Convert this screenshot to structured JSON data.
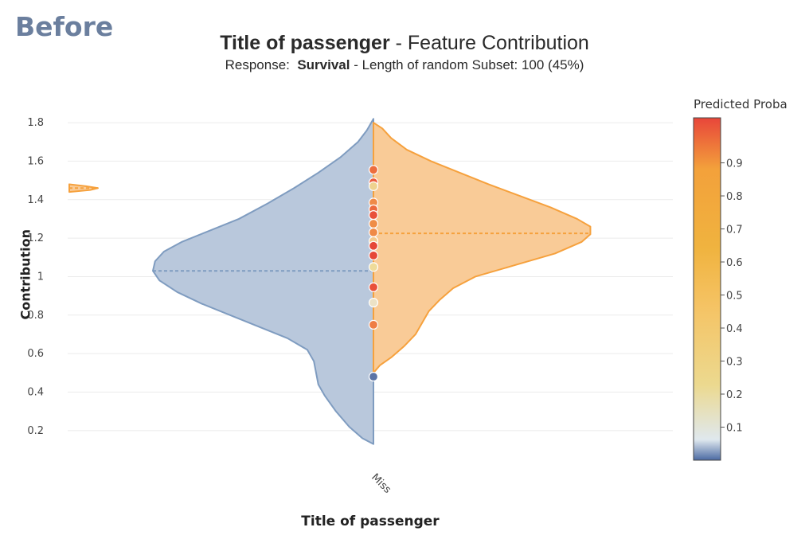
{
  "corner_label": "Before",
  "title": {
    "main": "Title of passenger",
    "rest": " - Feature Contribution"
  },
  "subtitle": {
    "pre": "Response:  ",
    "bold": "Survival",
    "post": " - Length of random Subset: 100 (45%)"
  },
  "colorbar": {
    "title": "Predicted Proba",
    "ticks": [
      "0.1",
      "0.2",
      "0.3",
      "0.4",
      "0.5",
      "0.6",
      "0.7",
      "0.8",
      "0.9"
    ],
    "colorscale": [
      "#4b6aa3",
      "#dfe8ee",
      "#ecd98f",
      "#f5c364",
      "#f0b33f",
      "#f3a13b",
      "#e8463a"
    ]
  },
  "chart_data": {
    "type": "violin",
    "xlabel": "Title of passenger",
    "ylabel": "Contribution",
    "ylim": [
      0.1,
      1.85
    ],
    "yticks": [
      0.2,
      0.4,
      0.6,
      0.8,
      1,
      1.2,
      1.4,
      1.6,
      1.8
    ],
    "ytick_labels": [
      "0.2",
      "0.4",
      "0.6",
      "0.8",
      "1",
      "1.2",
      "1.4",
      "1.6",
      "1.8"
    ],
    "categories": [
      "Miss"
    ],
    "grid": true,
    "series": [
      {
        "side": "negative",
        "color": "#7f9cc0",
        "fill": "#b9c8dc",
        "median": 1.03,
        "density": [
          [
            0.13,
            0.0
          ],
          [
            0.16,
            0.05
          ],
          [
            0.22,
            0.11
          ],
          [
            0.3,
            0.17
          ],
          [
            0.38,
            0.22
          ],
          [
            0.44,
            0.25
          ],
          [
            0.5,
            0.26
          ],
          [
            0.56,
            0.27
          ],
          [
            0.62,
            0.3
          ],
          [
            0.68,
            0.39
          ],
          [
            0.74,
            0.52
          ],
          [
            0.8,
            0.65
          ],
          [
            0.86,
            0.78
          ],
          [
            0.92,
            0.89
          ],
          [
            0.98,
            0.97
          ],
          [
            1.03,
            1.0
          ],
          [
            1.08,
            0.99
          ],
          [
            1.13,
            0.95
          ],
          [
            1.18,
            0.87
          ],
          [
            1.24,
            0.74
          ],
          [
            1.3,
            0.61
          ],
          [
            1.38,
            0.48
          ],
          [
            1.46,
            0.36
          ],
          [
            1.54,
            0.25
          ],
          [
            1.62,
            0.15
          ],
          [
            1.7,
            0.07
          ],
          [
            1.76,
            0.03
          ],
          [
            1.82,
            0.0
          ]
        ]
      },
      {
        "side": "positive",
        "color": "#f6a13d",
        "fill": "#f9cb97",
        "median": 1.225,
        "density": [
          [
            0.5,
            0.0
          ],
          [
            0.54,
            0.03
          ],
          [
            0.58,
            0.08
          ],
          [
            0.64,
            0.14
          ],
          [
            0.7,
            0.19
          ],
          [
            0.76,
            0.22
          ],
          [
            0.82,
            0.25
          ],
          [
            0.88,
            0.3
          ],
          [
            0.94,
            0.36
          ],
          [
            1.0,
            0.46
          ],
          [
            1.06,
            0.64
          ],
          [
            1.12,
            0.82
          ],
          [
            1.18,
            0.94
          ],
          [
            1.22,
            0.98
          ],
          [
            1.26,
            0.98
          ],
          [
            1.3,
            0.92
          ],
          [
            1.36,
            0.8
          ],
          [
            1.42,
            0.66
          ],
          [
            1.48,
            0.52
          ],
          [
            1.54,
            0.39
          ],
          [
            1.6,
            0.26
          ],
          [
            1.66,
            0.15
          ],
          [
            1.72,
            0.08
          ],
          [
            1.77,
            0.04
          ],
          [
            1.8,
            0.0
          ]
        ]
      },
      {
        "side": "positive",
        "color": "#f6a13d",
        "fill": "#f9cb97",
        "median": 1.46,
        "x_offset": -1,
        "density": [
          [
            1.44,
            0.0
          ],
          [
            1.45,
            0.35
          ],
          [
            1.46,
            0.48
          ],
          [
            1.47,
            0.28
          ],
          [
            1.48,
            0.0
          ]
        ]
      }
    ],
    "points": [
      {
        "y": 1.555,
        "color": "#ec6d3e"
      },
      {
        "y": 1.49,
        "color": "#ec5a3c"
      },
      {
        "y": 1.47,
        "color": "#eed28f"
      },
      {
        "y": 1.385,
        "color": "#ef8a48"
      },
      {
        "y": 1.35,
        "color": "#ec6a3e"
      },
      {
        "y": 1.32,
        "color": "#e9503a"
      },
      {
        "y": 1.275,
        "color": "#ef8d47"
      },
      {
        "y": 1.23,
        "color": "#ef8a48"
      },
      {
        "y": 1.185,
        "color": "#f4c98c"
      },
      {
        "y": 1.16,
        "color": "#e64738"
      },
      {
        "y": 1.11,
        "color": "#e64738"
      },
      {
        "y": 1.05,
        "color": "#eedb9a"
      },
      {
        "y": 0.945,
        "color": "#e9503a"
      },
      {
        "y": 0.865,
        "color": "#ece2c6"
      },
      {
        "y": 0.75,
        "color": "#ef7d45"
      },
      {
        "y": 0.48,
        "color": "#5b74a6"
      }
    ]
  }
}
